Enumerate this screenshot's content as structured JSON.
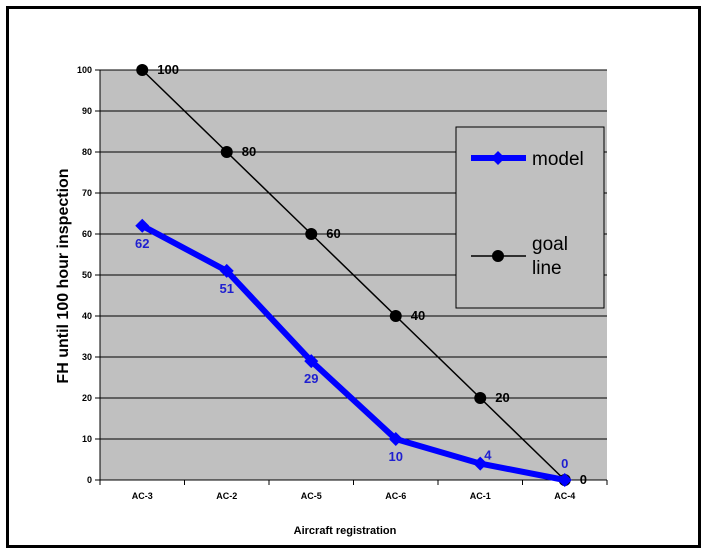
{
  "chart_data": {
    "type": "line",
    "title": "",
    "xlabel": "Aircraft registration",
    "ylabel": "FH until 100 hour inspection",
    "categories": [
      "AC-3",
      "AC-2",
      "AC-5",
      "AC-6",
      "AC-1",
      "AC-4"
    ],
    "ylim": [
      0,
      100
    ],
    "yticks": [
      0,
      10,
      20,
      30,
      40,
      50,
      60,
      70,
      80,
      90,
      100
    ],
    "grid": true,
    "legend_position": "right",
    "plot_background": "#c0c0c0",
    "series": [
      {
        "name": "model",
        "values": [
          62,
          51,
          29,
          10,
          4,
          0
        ],
        "color": "#0000ff",
        "marker": "diamond",
        "labels": [
          "62",
          "51",
          "29",
          "10",
          "4",
          "0"
        ]
      },
      {
        "name": "goal line",
        "values": [
          100,
          80,
          60,
          40,
          20,
          0
        ],
        "color": "#000000",
        "marker": "circle",
        "labels": [
          "100",
          "80",
          "60",
          "40",
          "20",
          "0"
        ]
      }
    ]
  },
  "legend": {
    "model_label": "model",
    "goal_label_line1": "goal",
    "goal_label_line2": "line"
  }
}
